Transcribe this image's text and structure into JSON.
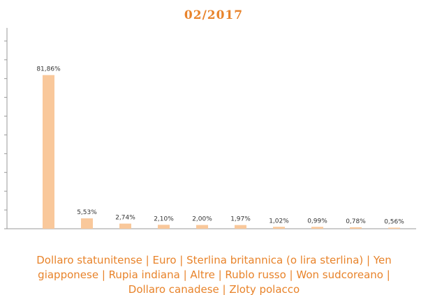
{
  "chart_data": {
    "type": "bar",
    "title": "02/2017",
    "categories": [
      "Dollaro statunitense",
      "Euro",
      "Sterlina britannica (o lira sterlina)",
      "Yen giapponese",
      "Rupia indiana",
      "Altre",
      "Rublo russo",
      "Won sudcoreano",
      "Dollaro canadese",
      "Zloty polacco"
    ],
    "category_separator": " | ",
    "values": [
      81.86,
      5.53,
      2.74,
      2.1,
      2.0,
      1.97,
      1.02,
      0.99,
      0.78,
      0.56
    ],
    "value_labels": [
      "81,86%",
      "5,53%",
      "2,74%",
      "2,10%",
      "2,00%",
      "1,97%",
      "1,02%",
      "0,99%",
      "0,78%",
      "0,56%"
    ],
    "color": "#f9c89b",
    "ylim": [
      0,
      107
    ],
    "yticks": [
      0,
      10,
      20,
      30,
      40,
      50,
      60,
      70,
      80,
      90,
      100
    ]
  }
}
